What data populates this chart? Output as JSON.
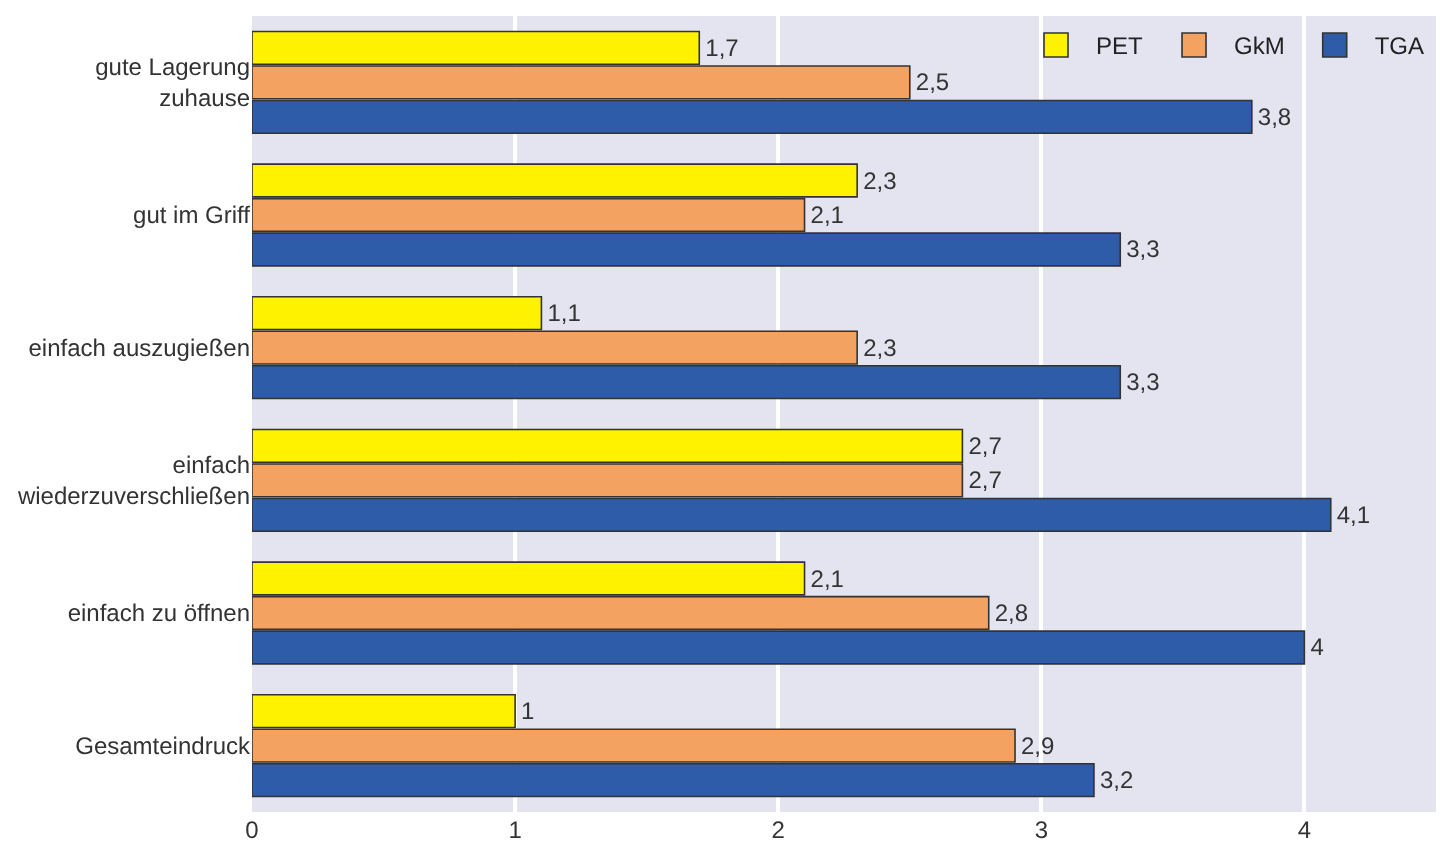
{
  "chart_data": {
    "type": "bar",
    "orientation": "horizontal",
    "categories": [
      "gute Lagerung\nzuhause",
      "gut im Griff",
      "einfach auszugießen",
      "einfach\nwiederzuverschließen",
      "einfach zu öffnen",
      "Gesamteindruck"
    ],
    "series": [
      {
        "name": "PET",
        "color": "#fff200",
        "values": [
          1.7,
          2.3,
          1.1,
          2.7,
          2.1,
          1
        ],
        "value_labels": [
          "1,7",
          "2,3",
          "1,1",
          "2,7",
          "2,1",
          "1"
        ]
      },
      {
        "name": "GkM",
        "color": "#f4a261",
        "values": [
          2.5,
          2.1,
          2.3,
          2.7,
          2.8,
          2.9
        ],
        "value_labels": [
          "2,5",
          "2,1",
          "2,3",
          "2,7",
          "2,8",
          "2,9"
        ]
      },
      {
        "name": "TGA",
        "color": "#2f5ca8",
        "values": [
          3.8,
          3.3,
          3.3,
          4.1,
          4,
          3.2
        ],
        "value_labels": [
          "3,8",
          "3,3",
          "3,3",
          "4,1",
          "4",
          "3,2"
        ]
      }
    ],
    "xlim": [
      0,
      4.5
    ],
    "xticks": [
      0,
      1,
      2,
      3,
      4
    ],
    "grid": "x",
    "legend": "top right"
  }
}
